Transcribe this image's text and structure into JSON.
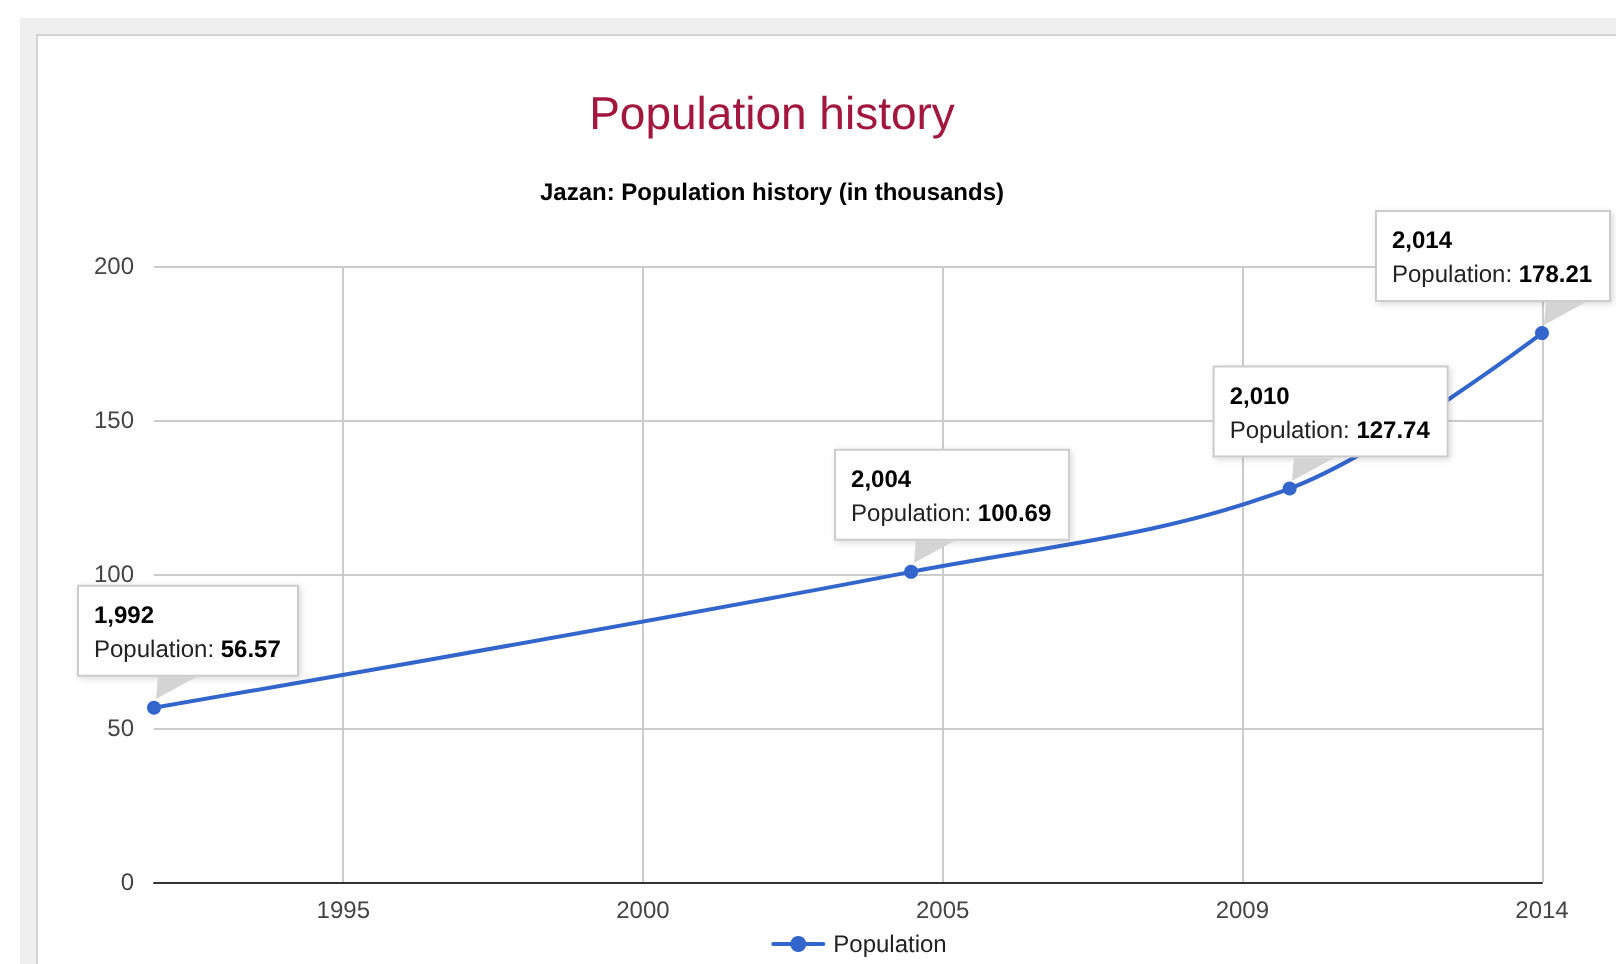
{
  "chart_data": {
    "type": "line",
    "title": "Population history",
    "subtitle": "Jazan: Population history (in thousands)",
    "x": [
      1992,
      2004,
      2010,
      2014
    ],
    "series": [
      {
        "name": "Population",
        "color": "#3366cc",
        "values": [
          56.57,
          100.69,
          127.74,
          178.21
        ],
        "value_labels": [
          "1,992\nPopulation: 56.57",
          "2,004\nPopulation: 100.69",
          "2,010\nPopulation: 127.74",
          "2,014\nPopulation: 178.21"
        ]
      }
    ],
    "xlim": [
      1992,
      2014
    ],
    "xticks": [
      1995,
      {
        "value": 1999.75,
        "label": "2000"
      },
      {
        "value": 2004.5,
        "label": "2005"
      },
      {
        "value": 2009.25,
        "label": "2009"
      },
      2014
    ],
    "ylim": [
      0,
      200
    ],
    "yticks": [
      0,
      50,
      100,
      150,
      200
    ],
    "grid": true,
    "legend": "bottom",
    "marker": "circle",
    "line_style": "solid"
  }
}
